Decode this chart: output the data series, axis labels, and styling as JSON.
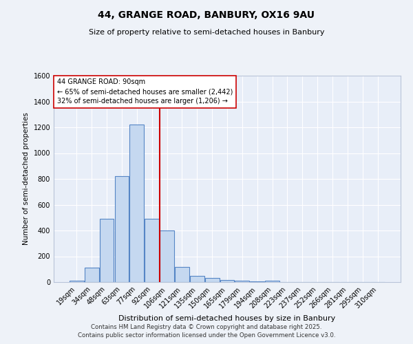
{
  "title1": "44, GRANGE ROAD, BANBURY, OX16 9AU",
  "title2": "Size of property relative to semi-detached houses in Banbury",
  "xlabel": "Distribution of semi-detached houses by size in Banbury",
  "ylabel": "Number of semi-detached properties",
  "categories": [
    "19sqm",
    "34sqm",
    "48sqm",
    "63sqm",
    "77sqm",
    "92sqm",
    "106sqm",
    "121sqm",
    "135sqm",
    "150sqm",
    "165sqm",
    "179sqm",
    "194sqm",
    "208sqm",
    "223sqm",
    "237sqm",
    "252sqm",
    "266sqm",
    "281sqm",
    "295sqm",
    "310sqm"
  ],
  "values": [
    10,
    110,
    490,
    820,
    1220,
    490,
    400,
    115,
    48,
    30,
    18,
    10,
    8,
    10,
    0,
    0,
    0,
    0,
    0,
    0,
    0
  ],
  "bar_color": "#c5d8f0",
  "bar_edge_color": "#5585c5",
  "vline_color": "#cc0000",
  "vline_index": 5.5,
  "annotation_title": "44 GRANGE ROAD: 90sqm",
  "annotation_line1": "← 65% of semi-detached houses are smaller (2,442)",
  "annotation_line2": "32% of semi-detached houses are larger (1,206) →",
  "ylim": [
    0,
    1600
  ],
  "yticks": [
    0,
    200,
    400,
    600,
    800,
    1000,
    1200,
    1400,
    1600
  ],
  "fig_bg": "#eef2f8",
  "plot_bg": "#e8eef8",
  "footer1": "Contains HM Land Registry data © Crown copyright and database right 2025.",
  "footer2": "Contains public sector information licensed under the Open Government Licence v3.0."
}
